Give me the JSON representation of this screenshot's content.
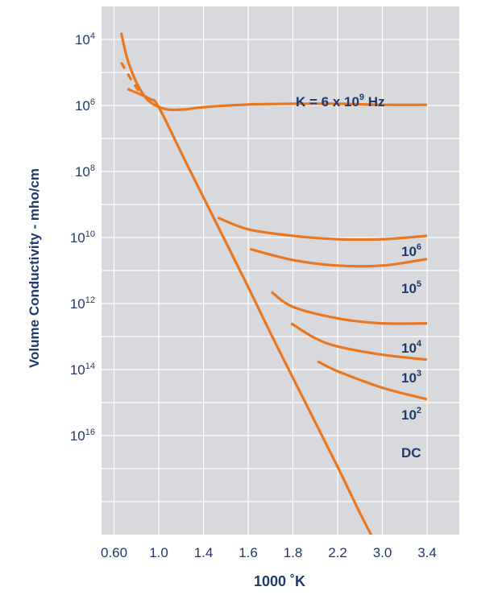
{
  "chart_data": {
    "type": "line",
    "title": "",
    "xlabel": "1000 ˚K",
    "ylabel": "Volume Conductivity - mho/cm",
    "x_ticks": [
      "0.60",
      "1.0",
      "1.4",
      "1.6",
      "1.8",
      "2.2",
      "3.0",
      "3.4"
    ],
    "y_ticks": [
      {
        "base": "10",
        "exp": "4"
      },
      {
        "base": "10",
        "exp": "6"
      },
      {
        "base": "10",
        "exp": "8"
      },
      {
        "base": "10",
        "exp": "10"
      },
      {
        "base": "10",
        "exp": "12"
      },
      {
        "base": "10",
        "exp": "14"
      },
      {
        "base": "10",
        "exp": "16"
      }
    ],
    "grid": true,
    "background_color": "#d7d9dc",
    "line_color": "#e87722",
    "text_color": "#1f3a6b",
    "note": "x positions are tick indices (0 = 0.60 ... 7 = 3.4); y values are exponents of 10 (larger = lower conductivity)",
    "series": [
      {
        "label_base": "K = 6 x 10",
        "label_sup": "9",
        "label_tail": " Hz",
        "points": [
          [
            0.16,
            3.8
          ],
          [
            0.3,
            4.6
          ],
          [
            0.5,
            5.3
          ],
          [
            0.7,
            5.75
          ],
          [
            0.9,
            5.98
          ],
          [
            1.2,
            6.12
          ],
          [
            1.6,
            6.12
          ],
          [
            2,
            6.05
          ],
          [
            3,
            5.97
          ],
          [
            4,
            5.95
          ],
          [
            5,
            5.95
          ],
          [
            6,
            5.98
          ],
          [
            7,
            5.98
          ]
        ]
      },
      {
        "label_base": "DC",
        "label_sup": "",
        "label_tail": "",
        "points": [
          [
            0.3,
            5.5
          ],
          [
            0.8,
            5.8
          ],
          [
            1.0,
            6.05
          ],
          [
            1.6,
            7.7
          ],
          [
            2.3,
            9.6
          ],
          [
            3.0,
            11.5
          ],
          [
            3.5,
            12.9
          ],
          [
            4.0,
            14.25
          ],
          [
            4.5,
            15.6
          ],
          [
            5.0,
            16.95
          ],
          [
            5.5,
            18.35
          ],
          [
            5.9,
            19.4
          ]
        ]
      },
      {
        "label_base": "10",
        "label_sup": "6",
        "label_tail": "",
        "points": [
          [
            2.32,
            9.4
          ],
          [
            3,
            9.75
          ],
          [
            4,
            9.95
          ],
          [
            5,
            10.05
          ],
          [
            6,
            10.05
          ],
          [
            7,
            9.95
          ]
        ]
      },
      {
        "label_base": "10",
        "label_sup": "5",
        "label_tail": "",
        "points": [
          [
            3.04,
            10.35
          ],
          [
            4,
            10.68
          ],
          [
            5,
            10.85
          ],
          [
            6,
            10.85
          ],
          [
            7,
            10.65
          ]
        ]
      },
      {
        "label_base": "10",
        "label_sup": "4",
        "label_tail": "",
        "points": [
          [
            3.52,
            11.65
          ],
          [
            4,
            12.1
          ],
          [
            5,
            12.45
          ],
          [
            6,
            12.6
          ],
          [
            7,
            12.6
          ]
        ]
      },
      {
        "label_base": "10",
        "label_sup": "3",
        "label_tail": "",
        "points": [
          [
            3.96,
            12.6
          ],
          [
            4.5,
            13.05
          ],
          [
            5,
            13.3
          ],
          [
            6,
            13.55
          ],
          [
            7,
            13.7
          ]
        ]
      },
      {
        "label_base": "10",
        "label_sup": "2",
        "label_tail": "",
        "points": [
          [
            4.55,
            13.75
          ],
          [
            5,
            14.05
          ],
          [
            6,
            14.55
          ],
          [
            7,
            14.9
          ]
        ]
      }
    ],
    "dashed_series": {
      "points": [
        [
          0.16,
          4.7
        ],
        [
          0.4,
          5.25
        ],
        [
          0.6,
          5.65
        ]
      ]
    }
  }
}
